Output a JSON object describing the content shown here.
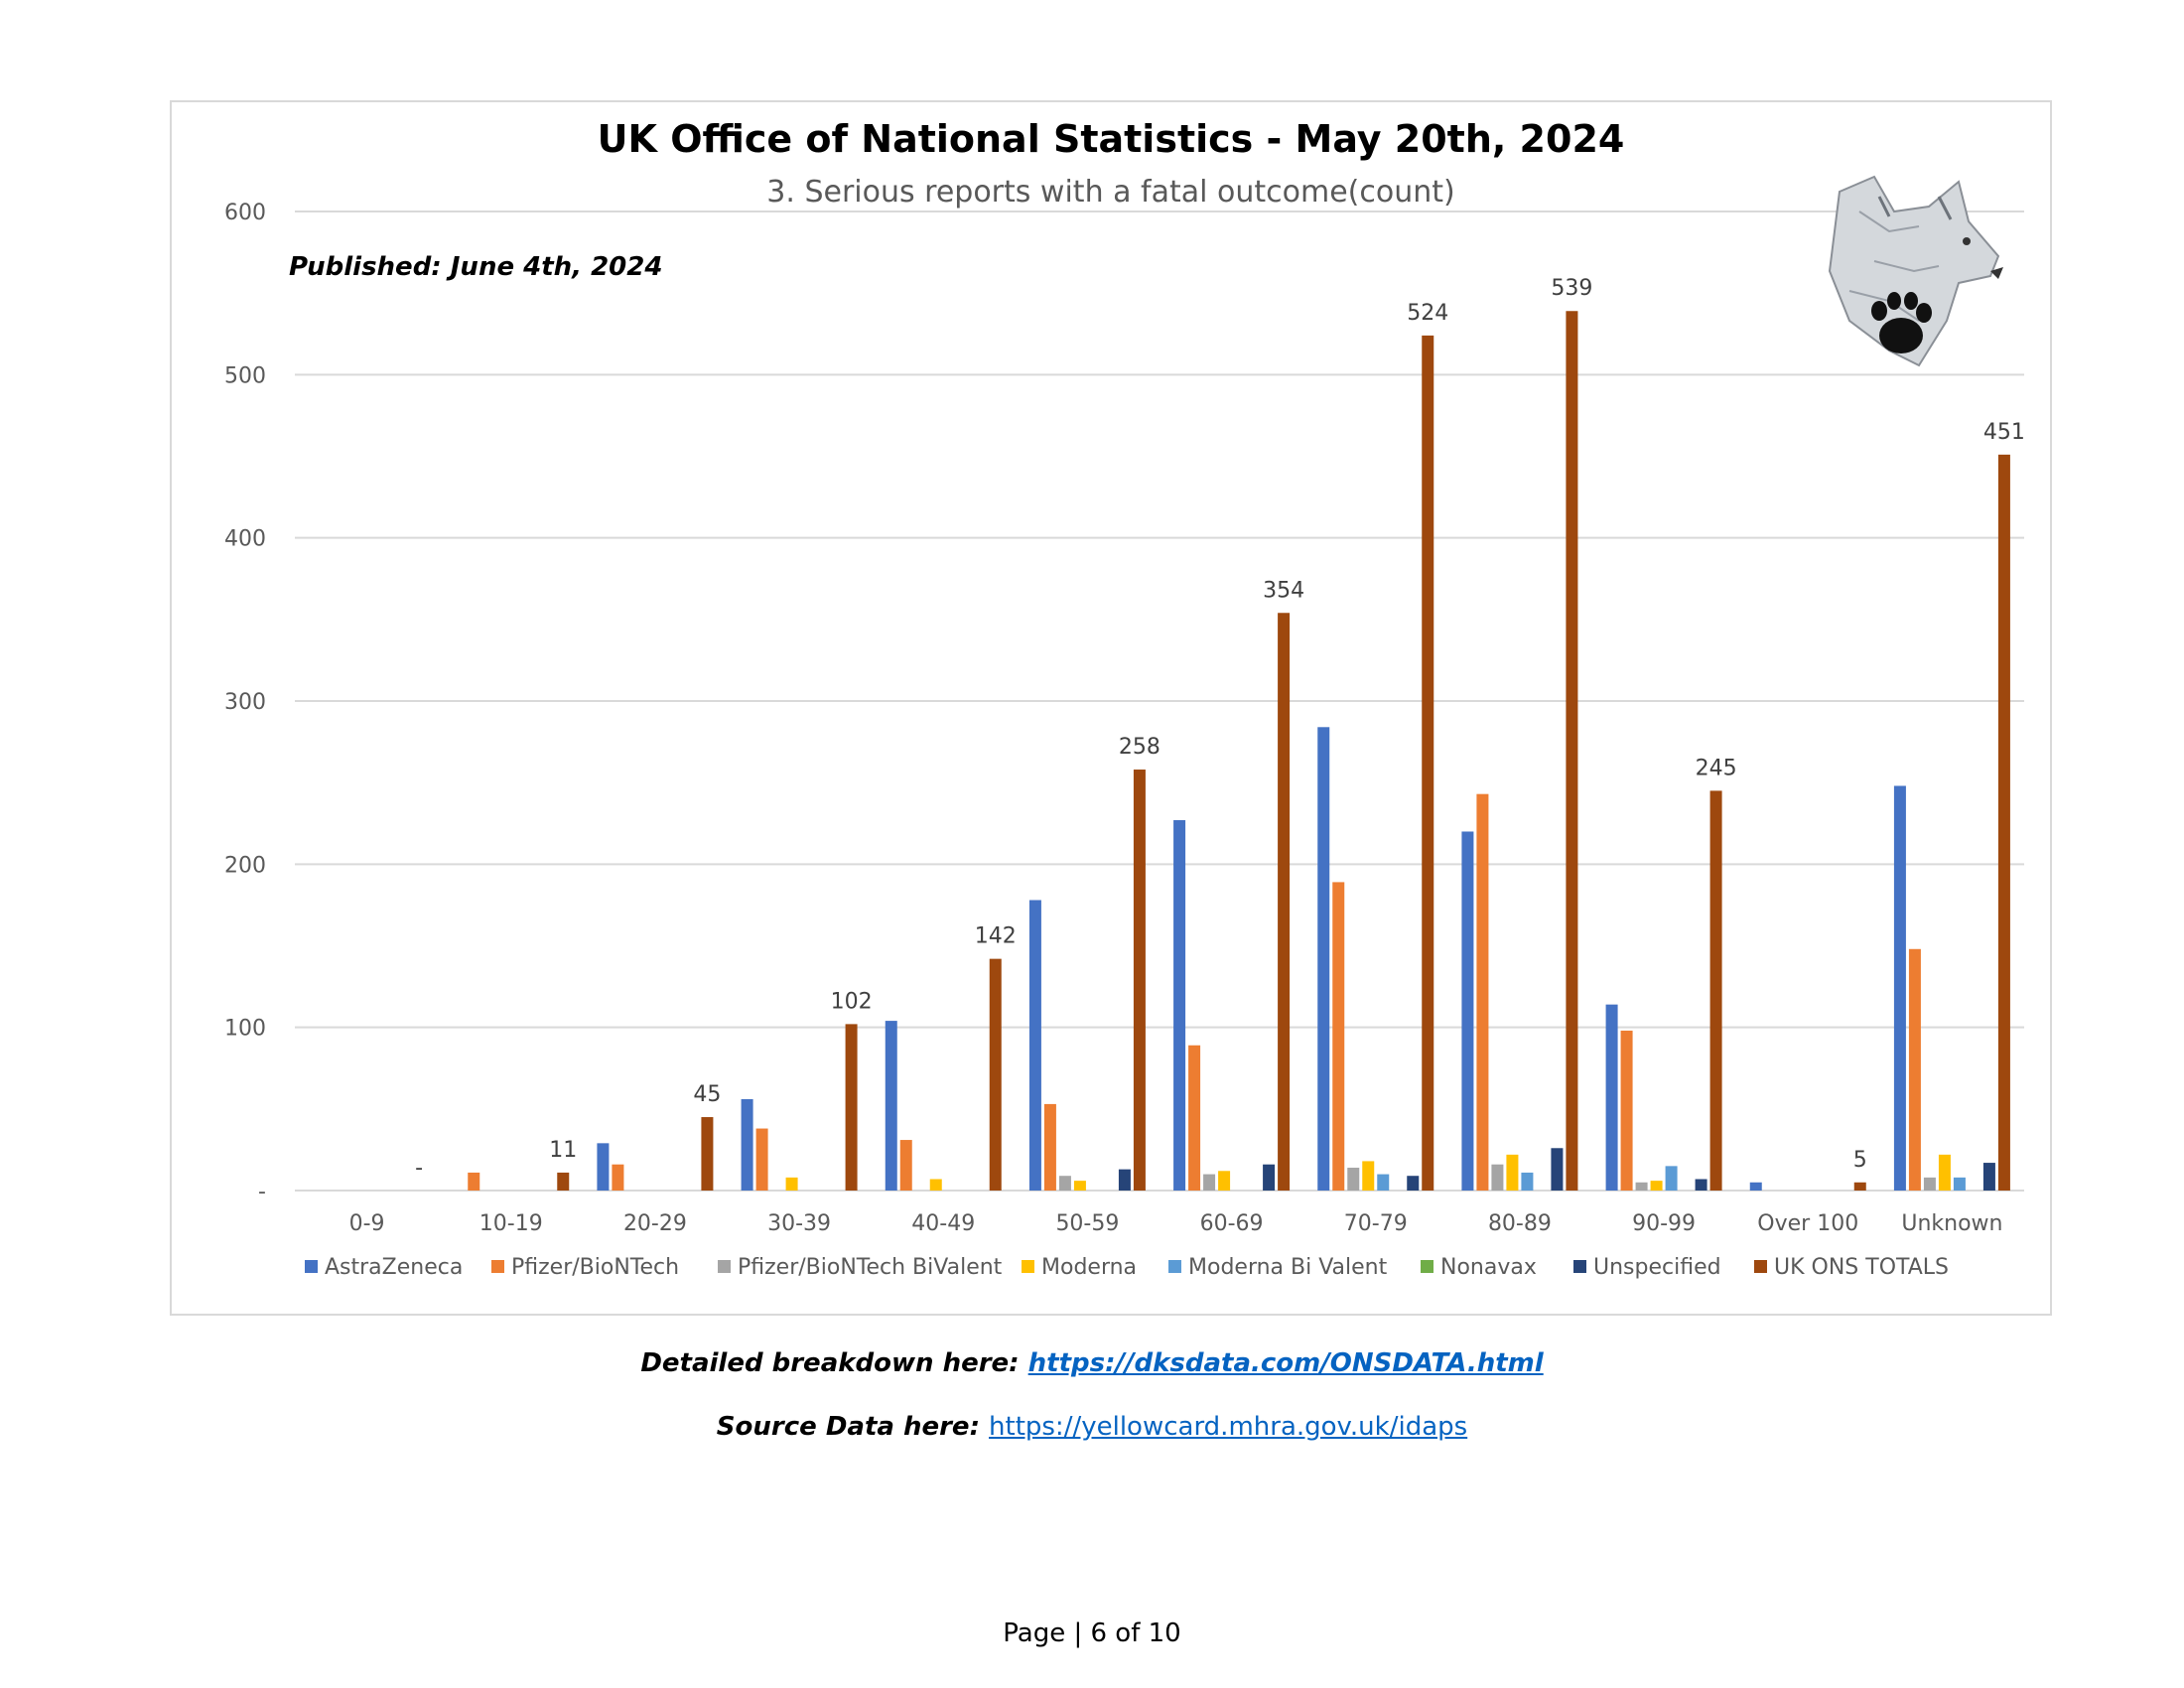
{
  "page": {
    "detailed_prefix": "Detailed breakdown here: ",
    "detailed_link": "https://dksdata.com/ONSDATA.html",
    "source_prefix": "Source Data here: ",
    "source_link": "https://yellowcard.mhra.gov.uk/idaps",
    "page_number": "Page | 6 of 10"
  },
  "chart_data": {
    "type": "bar",
    "title": "UK Office of National Statistics - May 20th, 2024",
    "subtitle": "3. Serious reports with a fatal outcome(count)",
    "annotation": "Published: June 4th, 2024",
    "logo": "wolf-head-with-paw-print-logo",
    "ylim": [
      0,
      600
    ],
    "yticks": [
      0,
      100,
      200,
      300,
      400,
      500,
      600
    ],
    "ytick_labels": [
      "-",
      "100",
      "200",
      "300",
      "400",
      "500",
      "600"
    ],
    "grid": true,
    "legend_position": "bottom",
    "categories": [
      "0-9",
      "10-19",
      "20-29",
      "30-39",
      "40-49",
      "50-59",
      "60-69",
      "70-79",
      "80-89",
      "90-99",
      "Over 100",
      "Unknown"
    ],
    "series": [
      {
        "name": "AstraZeneca",
        "color": "#4472c4",
        "values": [
          0,
          0,
          29,
          56,
          104,
          178,
          227,
          284,
          220,
          114,
          5,
          248
        ]
      },
      {
        "name": "Pfizer/BioNTech",
        "color": "#ed7d31",
        "values": [
          0,
          11,
          16,
          38,
          31,
          53,
          89,
          189,
          243,
          98,
          0,
          148
        ]
      },
      {
        "name": "Pfizer/BioNTech BiValent",
        "color": "#a5a5a5",
        "values": [
          0,
          0,
          0,
          0,
          0,
          9,
          10,
          14,
          16,
          5,
          0,
          8
        ]
      },
      {
        "name": "Moderna",
        "color": "#ffc000",
        "values": [
          0,
          0,
          0,
          8,
          7,
          6,
          12,
          18,
          22,
          6,
          0,
          22
        ]
      },
      {
        "name": "Moderna Bi Valent",
        "color": "#5b9bd5",
        "values": [
          0,
          0,
          0,
          0,
          0,
          0,
          0,
          10,
          11,
          15,
          0,
          8
        ]
      },
      {
        "name": "Nonavax",
        "color": "#70ad47",
        "values": [
          0,
          0,
          0,
          0,
          0,
          0,
          0,
          0,
          0,
          0,
          0,
          0
        ]
      },
      {
        "name": "Unspecified",
        "color": "#264478",
        "values": [
          0,
          0,
          0,
          0,
          0,
          13,
          16,
          9,
          26,
          7,
          0,
          17
        ]
      },
      {
        "name": "UK ONS TOTALS",
        "color": "#9e480e",
        "values": [
          0,
          11,
          45,
          102,
          142,
          258,
          354,
          524,
          539,
          245,
          5,
          451
        ]
      }
    ],
    "data_labels": [
      "-",
      "11",
      "45",
      "102",
      "142",
      "258",
      "354",
      "524",
      "539",
      "245",
      "5",
      "451"
    ]
  }
}
